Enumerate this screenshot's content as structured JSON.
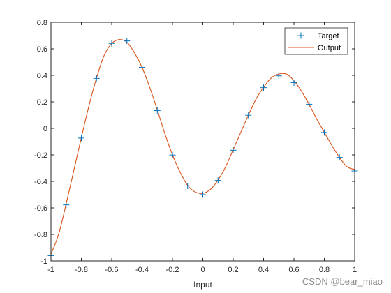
{
  "chart_data": {
    "type": "line",
    "title": "",
    "xlabel": "Input",
    "ylabel": "",
    "xlim": [
      -1,
      1
    ],
    "ylim": [
      -1,
      0.8
    ],
    "xticks": [
      -1,
      -0.8,
      -0.6,
      -0.4,
      -0.2,
      0,
      0.2,
      0.4,
      0.6,
      0.8,
      1
    ],
    "xtick_labels": [
      "-1",
      "-0.8",
      "-0.6",
      "-0.4",
      "-0.2",
      "0",
      "0.2",
      "0.4",
      "0.6",
      "0.8",
      "1"
    ],
    "yticks": [
      -1,
      -0.8,
      -0.6,
      -0.4,
      -0.2,
      0,
      0.2,
      0.4,
      0.6,
      0.8
    ],
    "ytick_labels": [
      "-1",
      "-0.8",
      "-0.6",
      "-0.4",
      "-0.2",
      "0",
      "0.2",
      "0.4",
      "0.6",
      "0.8"
    ],
    "grid": false,
    "legend_position": "top-right",
    "series": [
      {
        "name": "Target",
        "style": "markers",
        "marker": "plus",
        "color": "#0072BD",
        "x": [
          -1,
          -0.9,
          -0.8,
          -0.7,
          -0.6,
          -0.5,
          -0.4,
          -0.3,
          -0.2,
          -0.1,
          0,
          0.1,
          0.2,
          0.3,
          0.4,
          0.5,
          0.6,
          0.7,
          0.8,
          0.9,
          1
        ],
        "y": [
          -0.96,
          -0.577,
          -0.073,
          0.377,
          0.641,
          0.66,
          0.461,
          0.134,
          -0.201,
          -0.434,
          -0.5,
          -0.393,
          -0.165,
          0.099,
          0.307,
          0.396,
          0.345,
          0.182,
          -0.031,
          -0.219,
          -0.321
        ]
      },
      {
        "name": "Output",
        "style": "line",
        "color": "#D95319",
        "x": [
          -1,
          -0.95,
          -0.9,
          -0.85,
          -0.8,
          -0.75,
          -0.7,
          -0.65,
          -0.6,
          -0.55,
          -0.5,
          -0.45,
          -0.4,
          -0.35,
          -0.3,
          -0.25,
          -0.2,
          -0.15,
          -0.1,
          -0.05,
          0,
          0.05,
          0.1,
          0.15,
          0.2,
          0.25,
          0.3,
          0.35,
          0.4,
          0.45,
          0.5,
          0.55,
          0.6,
          0.65,
          0.7,
          0.75,
          0.8,
          0.85,
          0.9,
          0.95,
          1
        ],
        "y": [
          -0.95,
          -0.8,
          -0.57,
          -0.32,
          -0.07,
          0.17,
          0.38,
          0.55,
          0.64,
          0.67,
          0.65,
          0.57,
          0.46,
          0.31,
          0.14,
          -0.04,
          -0.2,
          -0.33,
          -0.43,
          -0.48,
          -0.49,
          -0.46,
          -0.39,
          -0.29,
          -0.16,
          -0.03,
          0.1,
          0.22,
          0.31,
          0.38,
          0.41,
          0.41,
          0.36,
          0.28,
          0.18,
          0.07,
          -0.03,
          -0.13,
          -0.22,
          -0.29,
          -0.31
        ]
      }
    ]
  },
  "watermark": "CSDN @bear_miao"
}
